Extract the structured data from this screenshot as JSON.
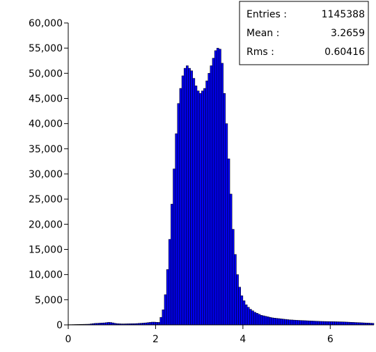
{
  "chart_data": {
    "type": "bar",
    "title": "",
    "xlabel": "",
    "ylabel": "",
    "xlim": [
      0,
      7
    ],
    "ylim": [
      0,
      60000
    ],
    "grid": false,
    "x_ticks": [
      0,
      2,
      4,
      6
    ],
    "x_tick_labels": [
      "0",
      "2",
      "4",
      "6"
    ],
    "y_ticks": [
      0,
      5000,
      10000,
      15000,
      20000,
      25000,
      30000,
      35000,
      40000,
      45000,
      50000,
      55000,
      60000
    ],
    "y_tick_labels": [
      "0",
      "5,000",
      "10,000",
      "15,000",
      "20,000",
      "25,000",
      "30,000",
      "35,000",
      "40,000",
      "45,000",
      "50,000",
      "55,000",
      "60,000"
    ],
    "bar_fill": "#0000ee",
    "bar_edge": "#000000",
    "bins": {
      "start": 0,
      "width": 0.05,
      "values": [
        50,
        60,
        70,
        80,
        90,
        100,
        110,
        120,
        130,
        140,
        200,
        260,
        300,
        320,
        350,
        380,
        400,
        450,
        500,
        480,
        400,
        300,
        250,
        220,
        200,
        200,
        210,
        220,
        230,
        240,
        250,
        270,
        300,
        330,
        360,
        400,
        450,
        500,
        550,
        550,
        520,
        500,
        1500,
        3000,
        6000,
        11000,
        17000,
        24000,
        31000,
        38000,
        44000,
        47000,
        49500,
        51000,
        51500,
        51000,
        50500,
        49000,
        47500,
        46500,
        46000,
        46500,
        47000,
        48500,
        50000,
        51500,
        53000,
        54500,
        55000,
        54800,
        52000,
        46000,
        40000,
        33000,
        26000,
        19000,
        14000,
        10000,
        7500,
        5800,
        4800,
        4000,
        3500,
        3100,
        2800,
        2500,
        2300,
        2100,
        1900,
        1800,
        1700,
        1600,
        1500,
        1400,
        1350,
        1300,
        1250,
        1200,
        1150,
        1100,
        1050,
        1000,
        980,
        950,
        920,
        900,
        880,
        860,
        840,
        820,
        800,
        780,
        760,
        740,
        720,
        700,
        690,
        680,
        670,
        660,
        650,
        640,
        630,
        620,
        610,
        600,
        580,
        560,
        540,
        520,
        500,
        480,
        460,
        440,
        420,
        400,
        380,
        360,
        340,
        320
      ]
    },
    "stats": {
      "entries_label": "Entries :",
      "entries_value": "1145388",
      "mean_label": "Mean :",
      "mean_value": "3.2659",
      "rms_label": "Rms :",
      "rms_value": "0.60416"
    }
  }
}
